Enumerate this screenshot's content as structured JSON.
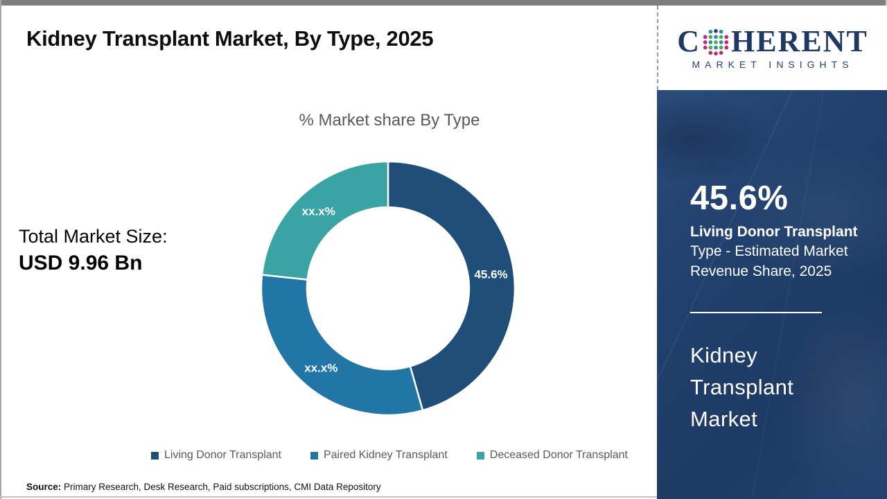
{
  "header": {
    "title": "Kidney Transplant Market, By Type, 2025"
  },
  "logo": {
    "brand_first_letter": "C",
    "brand_rest": "HERENT",
    "subtitle": "MARKET INSIGHTS",
    "brand_color": "#1f3864"
  },
  "main": {
    "total_market_label": "Total Market Size:",
    "total_market_value": "USD 9.96 Bn",
    "source_label": "Source:",
    "source_text": " Primary Research, Desk Research, Paid subscriptions, CMI Data Repository"
  },
  "chart_data": {
    "type": "pie",
    "subtype": "donut",
    "title": "% Market share By Type",
    "start_angle_deg": 0,
    "direction": "clockwise",
    "legend_position": "bottom",
    "inner_radius_ratio": 0.64,
    "categories": [
      "Living Donor Transplant",
      "Paired Kidney Transplant",
      "Deceased Donor Transplant"
    ],
    "series": [
      {
        "name": "Living Donor Transplant",
        "value": 45.6,
        "label": "45.6%",
        "color": "#1F4E79"
      },
      {
        "name": "Paired Kidney Transplant",
        "value": 31.1,
        "label": "xx.x%",
        "color": "#2176A5"
      },
      {
        "name": "Deceased Donor Transplant",
        "value": 23.3,
        "label": "xx.x%",
        "color": "#3AA3A3"
      }
    ]
  },
  "sidebar": {
    "stat_value": "45.6%",
    "stat_title": "Living Donor Transplant",
    "stat_line2": "Type - Estimated Market",
    "stat_line3": "Revenue Share, 2025",
    "market_name_line1": "Kidney",
    "market_name_line2": "Transplant",
    "market_name_line3": "Market",
    "bg_color": "#20406C"
  }
}
